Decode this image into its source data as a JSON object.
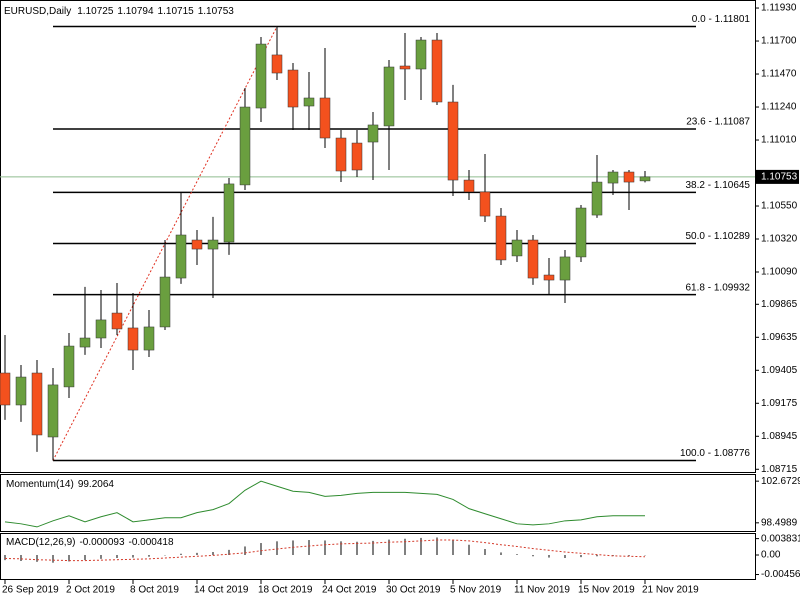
{
  "chart_data": [
    {
      "type": "candlestick",
      "title": "EURUSD,Daily",
      "categories": [
        "26 Sep 2019",
        null,
        null,
        null,
        "2 Oct 2019",
        null,
        null,
        null,
        "8 Oct 2019",
        null,
        null,
        null,
        "14 Oct 2019",
        null,
        null,
        null,
        "18 Oct 2019",
        null,
        null,
        null,
        "24 Oct 2019",
        null,
        null,
        null,
        "30 Oct 2019",
        null,
        null,
        null,
        "5 Nov 2019",
        null,
        null,
        null,
        "11 Nov 2019",
        null,
        null,
        null,
        "15 Nov 2019",
        null,
        null,
        null,
        "21 Nov 2019"
      ],
      "open": [
        1.09386,
        1.09163,
        1.09386,
        1.0894,
        1.09289,
        1.09567,
        1.0963,
        1.09804,
        1.097,
        1.09546,
        1.09707,
        1.10048,
        1.10313,
        1.1025,
        1.10299,
        1.10697,
        1.11233,
        1.11603,
        1.11498,
        1.11247,
        1.11303,
        1.11024,
        1.10989,
        1.10996,
        1.11108,
        1.11526,
        1.11505,
        1.11707,
        1.11275,
        1.10731,
        1.10648,
        1.1048,
        1.10202,
        1.10313,
        1.10069,
        1.10034,
        1.10195,
        1.10487,
        1.1071,
        1.10787,
        1.10725
      ],
      "high": [
        1.09651,
        1.09442,
        1.09477,
        1.09421,
        1.09665,
        1.09986,
        1.09965,
        1.10013,
        1.09944,
        1.09825,
        1.10313,
        1.10641,
        1.10383,
        1.10474,
        1.10745,
        1.11373,
        1.11728,
        1.11801,
        1.11547,
        1.11484,
        1.11651,
        1.1108,
        1.1108,
        1.11205,
        1.11568,
        1.11756,
        1.11728,
        1.11756,
        1.11394,
        1.10801,
        1.10913,
        1.10536,
        1.10383,
        1.10348,
        1.10188,
        1.10243,
        1.10557,
        1.10906,
        1.10801,
        1.10801,
        1.10794
      ],
      "low": [
        1.09059,
        1.09045,
        1.08836,
        1.08776,
        1.09212,
        1.09512,
        1.0956,
        1.09651,
        1.09407,
        1.09498,
        1.09686,
        1.10007,
        1.10139,
        1.09909,
        1.10209,
        1.10662,
        1.11136,
        1.11428,
        1.1108,
        1.1108,
        1.10954,
        1.10717,
        1.10752,
        1.10731,
        1.10801,
        1.11289,
        1.11289,
        1.11254,
        1.1062,
        1.10592,
        1.10439,
        1.10139,
        1.1016,
        1.1,
        1.0993,
        1.09874,
        1.1016,
        1.10467,
        1.10627,
        1.10522,
        1.10715
      ],
      "close": [
        1.09163,
        1.09358,
        1.08954,
        1.09303,
        1.09574,
        1.0963,
        1.09756,
        1.09693,
        1.09546,
        1.09707,
        1.10055,
        1.10348,
        1.1025,
        1.10313,
        1.10704,
        1.1124,
        1.11679,
        1.11477,
        1.1124,
        1.11303,
        1.11024,
        1.10794,
        1.10801,
        1.11115,
        1.11519,
        1.11505,
        1.11707,
        1.11275,
        1.10731,
        1.10648,
        1.1048,
        1.10174,
        1.10313,
        1.10048,
        1.10034,
        1.10195,
        1.10536,
        1.10717,
        1.10787,
        1.10717,
        1.10753
      ],
      "up_color": "#6a9f3f",
      "down_color": "#f4511e",
      "ylim": [
        1.08696,
        1.11986
      ],
      "yticks": [
        {
          "value": 1.1193,
          "label": "1.11930"
        },
        {
          "value": 1.117,
          "label": "1.11700"
        },
        {
          "value": 1.1147,
          "label": "1.11470"
        },
        {
          "value": 1.1124,
          "label": "1.11240"
        },
        {
          "value": 1.1101,
          "label": "1.11010"
        },
        {
          "value": 1.1055,
          "label": "1.10550"
        },
        {
          "value": 1.1032,
          "label": "1.10320"
        },
        {
          "value": 1.1009,
          "label": "1.10090"
        },
        1.09865,
        1.09635,
        1.09405,
        1.09175,
        1.08945,
        1.08715
      ],
      "fib_levels": [
        {
          "value": 1.11801,
          "label": "0.0 - 1.11801"
        },
        {
          "value": 1.11087,
          "label": "23.6 - 1.11087"
        },
        {
          "value": 1.10645,
          "label": "38.2 - 1.10645"
        },
        {
          "value": 1.10289,
          "label": "50.0 - 1.10289"
        },
        {
          "value": 1.09932,
          "label": "61.8 - 1.09932"
        },
        {
          "value": 1.08776,
          "label": "100.0 - 1.08776"
        }
      ]
    },
    {
      "type": "line",
      "title": "Momentum(14)",
      "color": "#2e8b2e",
      "values": [
        98.6,
        98.4,
        98.09,
        98.7,
        99.21,
        98.6,
        99.11,
        99.52,
        98.6,
        98.8,
        99.01,
        99.01,
        99.52,
        99.82,
        100.43,
        101.76,
        102.67,
        102.16,
        101.66,
        101.55,
        101.15,
        101.25,
        101.45,
        101.55,
        101.55,
        101.55,
        101.45,
        101.35,
        100.84,
        99.92,
        99.41,
        98.91,
        98.4,
        98.29,
        98.4,
        98.7,
        98.8,
        99.11,
        99.21,
        99.21,
        99.2064
      ],
      "ylim": [
        97.68,
        103.29
      ],
      "yticks": [
        102.6729,
        98.4989
      ]
    },
    {
      "type": "macd",
      "title": "MACD(12,26,9)",
      "color": "#808080",
      "signal_color": "#d43a2a",
      "macd": [
        -0.0012,
        -0.0014,
        -0.0016,
        -0.0018,
        -0.0015,
        -0.0012,
        -0.0009,
        -0.0007,
        -0.0006,
        -0.0004,
        -0.0001,
        0.0003,
        0.0005,
        0.0007,
        0.0012,
        0.002,
        0.0028,
        0.0032,
        0.0034,
        0.0035,
        0.0034,
        0.0032,
        0.0031,
        0.0033,
        0.0036,
        0.0038,
        0.004,
        0.0041,
        0.0035,
        0.0024,
        0.0014,
        0.0006,
        0.0002,
        -0.0003,
        -0.0006,
        -0.0007,
        -0.0005,
        -0.0003,
        -0.0002,
        -0.0002,
        -9.3e-05
      ],
      "signal": [
        -0.0008,
        -0.0009,
        -0.0011,
        -0.0012,
        -0.0013,
        -0.0013,
        -0.0012,
        -0.0011,
        -0.001,
        -0.0009,
        -0.0007,
        -0.0005,
        -0.0003,
        -0.0001,
        0.0002,
        0.0005,
        0.001,
        0.0014,
        0.0018,
        0.0021,
        0.0024,
        0.0026,
        0.0027,
        0.0028,
        0.003,
        0.0031,
        0.0033,
        0.0035,
        0.0035,
        0.0033,
        0.0029,
        0.0024,
        0.002,
        0.0015,
        0.0011,
        0.0007,
        0.0004,
        0.0001,
        -0.0002,
        -0.0003,
        -0.000418
      ],
      "ylim": [
        -0.00561,
        0.00491
      ],
      "yticks": [
        0.003831,
        {
          "value": 0,
          "label": "0.00"
        },
        -0.004564
      ]
    }
  ]
}
